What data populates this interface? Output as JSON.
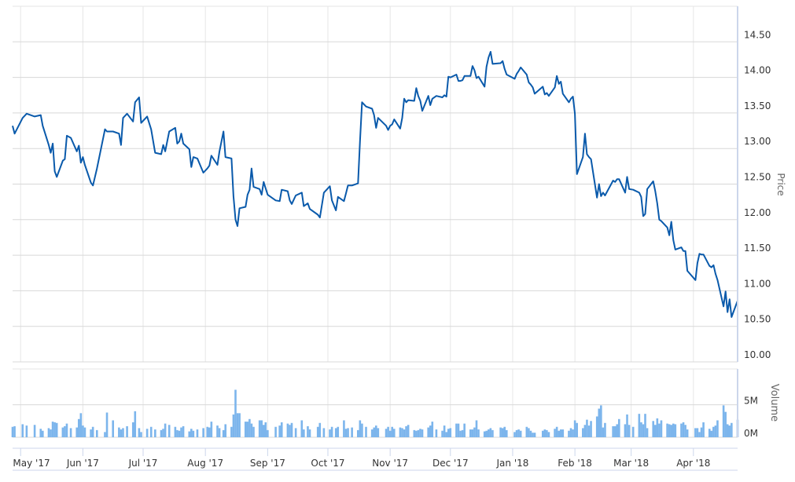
{
  "chart_data": [
    {
      "type": "line",
      "ylabel": "Price",
      "ylim": [
        10,
        15
      ],
      "yticks": [
        "10.00",
        "10.50",
        "11.00",
        "11.50",
        "12.00",
        "12.50",
        "13.00",
        "13.50",
        "14.00",
        "14.50"
      ],
      "grid": true,
      "legend": "none",
      "color": "#0a5aab",
      "x": [
        "2017-04-27",
        "2017-04-28",
        "2017-05-02",
        "2017-05-04",
        "2017-05-08",
        "2017-05-11",
        "2017-05-12",
        "2017-05-15",
        "2017-05-16",
        "2017-05-17",
        "2017-05-18",
        "2017-05-19",
        "2017-05-22",
        "2017-05-23",
        "2017-05-24",
        "2017-05-26",
        "2017-05-29",
        "2017-05-30",
        "2017-05-31",
        "2017-06-01",
        "2017-06-02",
        "2017-06-05",
        "2017-06-06",
        "2017-06-08",
        "2017-06-12",
        "2017-06-13",
        "2017-06-16",
        "2017-06-19",
        "2017-06-20",
        "2017-06-21",
        "2017-06-23",
        "2017-06-26",
        "2017-06-27",
        "2017-06-29",
        "2017-06-30",
        "2017-07-03",
        "2017-07-05",
        "2017-07-07",
        "2017-07-10",
        "2017-07-11",
        "2017-07-12",
        "2017-07-14",
        "2017-07-17",
        "2017-07-18",
        "2017-07-19",
        "2017-07-20",
        "2017-07-21",
        "2017-07-24",
        "2017-07-25",
        "2017-07-26",
        "2017-07-28",
        "2017-07-31",
        "2017-08-02",
        "2017-08-03",
        "2017-08-04",
        "2017-08-07",
        "2017-08-08",
        "2017-08-10",
        "2017-08-11",
        "2017-08-14",
        "2017-08-15",
        "2017-08-16",
        "2017-08-17",
        "2017-08-18",
        "2017-08-21",
        "2017-08-22",
        "2017-08-23",
        "2017-08-24",
        "2017-08-25",
        "2017-08-28",
        "2017-08-29",
        "2017-08-30",
        "2017-08-31",
        "2017-09-01",
        "2017-09-05",
        "2017-09-07",
        "2017-09-08",
        "2017-09-11",
        "2017-09-12",
        "2017-09-13",
        "2017-09-15",
        "2017-09-18",
        "2017-09-19",
        "2017-09-21",
        "2017-09-22",
        "2017-09-26",
        "2017-09-27",
        "2017-09-29",
        "2017-10-02",
        "2017-10-03",
        "2017-10-05",
        "2017-10-06",
        "2017-10-09",
        "2017-10-10",
        "2017-10-11",
        "2017-10-13",
        "2017-10-16",
        "2017-10-17",
        "2017-10-18",
        "2017-10-20",
        "2017-10-23",
        "2017-10-24",
        "2017-10-25",
        "2017-10-26",
        "2017-10-30",
        "2017-10-31",
        "2017-11-01",
        "2017-11-02",
        "2017-11-03",
        "2017-11-06",
        "2017-11-07",
        "2017-11-08",
        "2017-11-09",
        "2017-11-10",
        "2017-11-13",
        "2017-11-14",
        "2017-11-15",
        "2017-11-16",
        "2017-11-17",
        "2017-11-20",
        "2017-11-21",
        "2017-11-22",
        "2017-11-24",
        "2017-11-27",
        "2017-11-28",
        "2017-11-29",
        "2017-11-30",
        "2017-12-01",
        "2017-12-04",
        "2017-12-05",
        "2017-12-06",
        "2017-12-07",
        "2017-12-08",
        "2017-12-11",
        "2017-12-12",
        "2017-12-13",
        "2017-12-14",
        "2017-12-15",
        "2017-12-18",
        "2017-12-19",
        "2017-12-20",
        "2017-12-21",
        "2017-12-22",
        "2017-12-26",
        "2017-12-27",
        "2017-12-28",
        "2017-12-29",
        "2018-01-02",
        "2018-01-03",
        "2018-01-04",
        "2018-01-05",
        "2018-01-08",
        "2018-01-09",
        "2018-01-10",
        "2018-01-11",
        "2018-01-12",
        "2018-01-16",
        "2018-01-17",
        "2018-01-18",
        "2018-01-19",
        "2018-01-22",
        "2018-01-23",
        "2018-01-24",
        "2018-01-25",
        "2018-01-26",
        "2018-01-29",
        "2018-01-30",
        "2018-01-31",
        "2018-02-01",
        "2018-02-02",
        "2018-02-05",
        "2018-02-06",
        "2018-02-07",
        "2018-02-08",
        "2018-02-09",
        "2018-02-12",
        "2018-02-13",
        "2018-02-14",
        "2018-02-15",
        "2018-02-16",
        "2018-02-20",
        "2018-02-21",
        "2018-02-22",
        "2018-02-23",
        "2018-02-26",
        "2018-02-27",
        "2018-02-28",
        "2018-03-02",
        "2018-03-05",
        "2018-03-06",
        "2018-03-07",
        "2018-03-08",
        "2018-03-09",
        "2018-03-12",
        "2018-03-13",
        "2018-03-14",
        "2018-03-15",
        "2018-03-16",
        "2018-03-19",
        "2018-03-20",
        "2018-03-21",
        "2018-03-22",
        "2018-03-23",
        "2018-03-26",
        "2018-03-27",
        "2018-03-28",
        "2018-03-29",
        "2018-04-02",
        "2018-04-03",
        "2018-04-04",
        "2018-04-05",
        "2018-04-06",
        "2018-04-09",
        "2018-04-10",
        "2018-04-11",
        "2018-04-12",
        "2018-04-13",
        "2018-04-16",
        "2018-04-17",
        "2018-04-18",
        "2018-04-19",
        "2018-04-20",
        "2018-04-23"
      ],
      "values": [
        13.32,
        13.21,
        13.43,
        13.49,
        13.45,
        13.47,
        13.32,
        13.05,
        12.94,
        13.07,
        12.68,
        12.6,
        12.83,
        12.85,
        13.18,
        13.15,
        12.96,
        13.04,
        12.8,
        12.88,
        12.77,
        12.52,
        12.48,
        12.72,
        13.27,
        13.24,
        13.24,
        13.21,
        13.05,
        13.43,
        13.49,
        13.38,
        13.65,
        13.72,
        13.36,
        13.45,
        13.27,
        12.94,
        12.92,
        13.05,
        12.96,
        13.24,
        13.29,
        13.07,
        13.1,
        13.21,
        13.07,
        12.99,
        12.74,
        12.88,
        12.86,
        12.66,
        12.72,
        12.76,
        12.9,
        12.77,
        12.96,
        13.24,
        12.88,
        12.86,
        12.33,
        12.0,
        11.91,
        12.16,
        12.18,
        12.35,
        12.42,
        12.72,
        12.46,
        12.43,
        12.35,
        12.53,
        12.44,
        12.35,
        12.27,
        12.26,
        12.42,
        12.4,
        12.27,
        12.22,
        12.34,
        12.38,
        12.19,
        12.23,
        12.15,
        12.07,
        12.03,
        12.38,
        12.47,
        12.27,
        12.13,
        12.32,
        12.26,
        12.37,
        12.48,
        12.48,
        12.51,
        13.1,
        13.65,
        13.59,
        13.56,
        13.47,
        13.29,
        13.43,
        13.32,
        13.26,
        13.32,
        13.34,
        13.41,
        13.28,
        13.43,
        13.7,
        13.65,
        13.68,
        13.67,
        13.85,
        13.74,
        13.67,
        13.53,
        13.74,
        13.61,
        13.7,
        13.74,
        13.72,
        13.75,
        13.73,
        14.01,
        14.0,
        14.04,
        13.95,
        13.95,
        13.96,
        14.02,
        14.02,
        14.16,
        14.1,
        13.99,
        14.01,
        13.87,
        14.15,
        14.28,
        14.36,
        14.19,
        14.2,
        14.23,
        14.12,
        14.04,
        13.98,
        14.05,
        14.09,
        14.14,
        14.04,
        13.93,
        13.9,
        13.86,
        13.77,
        13.87,
        13.76,
        13.78,
        13.74,
        13.86,
        14.02,
        13.91,
        13.94,
        13.77,
        13.65,
        13.7,
        13.73,
        13.49,
        12.64,
        12.88,
        13.21,
        12.92,
        12.88,
        12.85,
        12.31,
        12.5,
        12.33,
        12.38,
        12.34,
        12.55,
        12.53,
        12.57,
        12.57,
        12.38,
        12.6,
        12.43,
        12.42,
        12.38,
        12.32,
        12.05,
        12.08,
        12.43,
        12.54,
        12.4,
        12.23,
        12.0,
        11.98,
        11.89,
        11.78,
        11.97,
        11.71,
        11.58,
        11.61,
        11.56,
        11.56,
        11.28,
        11.15,
        11.39,
        11.52,
        11.51,
        11.51,
        11.35,
        11.33,
        11.36,
        11.24,
        11.15,
        10.78,
        10.99,
        10.7,
        10.88,
        10.63,
        10.86
      ]
    },
    {
      "type": "bar",
      "ylabel": "Volume",
      "ylim": [
        0,
        10500000
      ],
      "yticks": [
        "0M",
        "5M"
      ],
      "color": "#7cb5ec",
      "unit": "millions",
      "values": [
        1.6,
        1.7,
        2.0,
        1.8,
        1.9,
        1.3,
        1.0,
        1.4,
        1.2,
        2.4,
        2.3,
        2.2,
        1.5,
        1.7,
        2.1,
        1.4,
        1.5,
        2.8,
        3.7,
        1.8,
        1.5,
        1.2,
        1.6,
        1.1,
        0.8,
        3.8,
        2.6,
        1.5,
        1.2,
        1.4,
        1.7,
        2.3,
        4.0,
        1.4,
        0.8,
        1.3,
        1.6,
        1.2,
        1.1,
        1.3,
        2.1,
        1.9,
        1.6,
        1.1,
        1.0,
        1.5,
        1.7,
        0.9,
        1.3,
        1.0,
        1.2,
        1.4,
        1.6,
        1.5,
        2.4,
        1.8,
        1.4,
        1.1,
        2.0,
        1.6,
        3.5,
        7.3,
        3.7,
        3.7,
        2.4,
        2.4,
        2.8,
        2.1,
        1.6,
        2.6,
        2.6,
        1.9,
        2.3,
        1.1,
        1.6,
        1.8,
        2.3,
        2.1,
        1.9,
        2.2,
        1.4,
        2.6,
        1.2,
        1.7,
        1.2,
        1.6,
        2.2,
        1.4,
        1.2,
        1.6,
        1.4,
        1.6,
        2.6,
        1.3,
        1.4,
        1.5,
        1.1,
        2.6,
        2.1,
        1.6,
        1.2,
        1.5,
        1.8,
        1.4,
        1.3,
        1.6,
        1.0,
        1.6,
        1.3,
        1.5,
        1.4,
        1.2,
        1.7,
        1.9,
        1.1,
        1.0,
        1.1,
        1.3,
        1.2,
        1.5,
        1.8,
        2.4,
        1.2,
        1.0,
        1.8,
        0.8,
        1.3,
        1.4,
        2.1,
        2.1,
        1.0,
        1.1,
        2.1,
        1.2,
        1.2,
        1.5,
        2.6,
        1.2,
        0.9,
        1.0,
        1.2,
        1.4,
        1.1,
        1.5,
        1.4,
        1.6,
        1.1,
        0.8,
        1.1,
        1.2,
        1.0,
        1.6,
        1.4,
        1.0,
        0.7,
        0.7,
        1.0,
        1.2,
        1.1,
        0.8,
        1.3,
        1.6,
        1.0,
        1.2,
        1.2,
        1.0,
        1.4,
        1.2,
        2.6,
        2.2,
        1.4,
        1.9,
        2.7,
        1.8,
        2.5,
        3.2,
        4.4,
        4.9,
        1.5,
        2.2,
        1.7,
        1.7,
        2.0,
        2.8,
        2.0,
        3.5,
        1.9,
        1.6,
        3.6,
        2.3,
        2.0,
        3.6,
        1.4,
        2.5,
        1.9,
        2.9,
        2.1,
        2.6,
        2.1,
        2.0,
        1.9,
        2.1,
        2.0,
        2.1,
        2.3,
        1.9,
        1.2,
        1.4,
        1.4,
        0.8,
        1.5,
        2.3,
        1.3,
        1.0,
        1.6,
        1.8,
        2.6,
        4.9,
        3.9,
        2.0,
        1.8,
        2.2,
        2.7
      ]
    }
  ],
  "x_axis": {
    "months": [
      {
        "date": "2017-05-01",
        "label": "May '17"
      },
      {
        "date": "2017-06-01",
        "label": "Jun '17"
      },
      {
        "date": "2017-07-01",
        "label": "Jul '17"
      },
      {
        "date": "2017-08-01",
        "label": "Aug '17"
      },
      {
        "date": "2017-09-01",
        "label": "Sep '17"
      },
      {
        "date": "2017-10-01",
        "label": "Oct '17"
      },
      {
        "date": "2017-11-01",
        "label": "Nov '17"
      },
      {
        "date": "2017-12-01",
        "label": "Dec '17"
      },
      {
        "date": "2018-01-01",
        "label": "Jan '18"
      },
      {
        "date": "2018-02-01",
        "label": "Feb '18"
      },
      {
        "date": "2018-03-01",
        "label": "Mar '18"
      },
      {
        "date": "2018-04-01",
        "label": "Apr '18"
      }
    ]
  }
}
